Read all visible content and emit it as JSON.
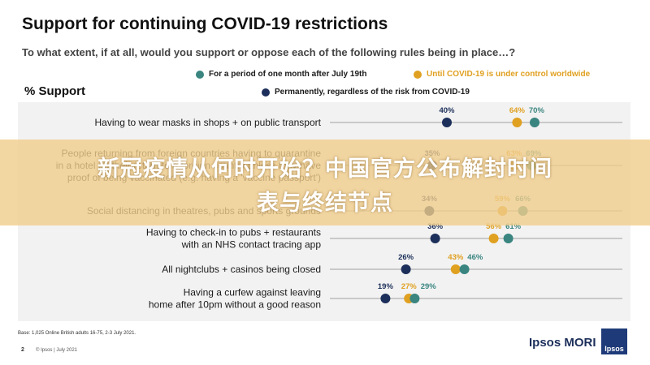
{
  "page": {
    "title": "Support for continuing COVID-19 restrictions",
    "subtitle": "To what extent, if at all, would you support or oppose each of the following rules being in place…?",
    "y_label": "% Support",
    "base_note": "Base: 1,025 Online British adults 16-75, 2-3 July 2021.",
    "page_number": "2",
    "footer_note": "© Ipsos | July 2021",
    "brand": "Ipsos MORI",
    "logo_text": "Ipsos",
    "banner_line1": "新冠疫情从何时开始？中国官方公布解封时间",
    "banner_line2": "表与终结节点"
  },
  "colors": {
    "month": "#3a8580",
    "control": "#e0a020",
    "permanent": "#1c2f5a"
  },
  "chart_data": {
    "type": "dot",
    "xlim": [
      0,
      100
    ],
    "series": [
      {
        "name": "For a period of one month after July 19th",
        "key": "month"
      },
      {
        "name": "Until COVID-19 is under control worldwide",
        "key": "control"
      },
      {
        "name": "Permanently, regardless of the risk from COVID-19",
        "key": "permanent"
      }
    ],
    "rows": [
      {
        "label": [
          "Having to wear masks in shops + on public transport"
        ],
        "permanent": 40,
        "control": 64,
        "month": 70
      },
      {
        "label": [
          "People returning from foreign countries having to quarantine",
          "in a hotel on their return to a foreign country unless they have",
          "proof of being vaccinated (e.g. having a 'vaccine passport')"
        ],
        "permanent": 35,
        "control": 63,
        "month": 69
      },
      {
        "label": [
          "Social distancing in theatres, pubs and sports grounds"
        ],
        "permanent": 34,
        "control": 59,
        "month": 66
      },
      {
        "label": [
          "Having to check-in to pubs + restaurants",
          "with an NHS contact tracing app"
        ],
        "permanent": 36,
        "control": 56,
        "month": 61
      },
      {
        "label": [
          "All nightclubs + casinos being closed"
        ],
        "permanent": 26,
        "control": 43,
        "month": 46
      },
      {
        "label": [
          "Having a curfew against leaving",
          "home after 10pm without a good reason"
        ],
        "permanent": 19,
        "control": 27,
        "month": 29
      }
    ]
  }
}
